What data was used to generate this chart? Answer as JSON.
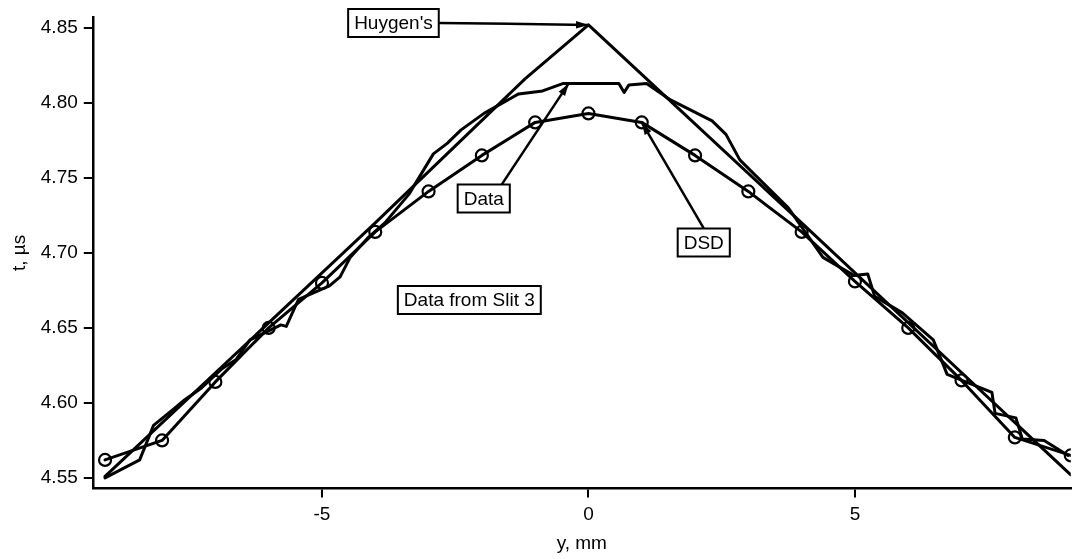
{
  "chart_data": {
    "type": "line",
    "xlabel": "y, mm",
    "ylabel": "t, µs",
    "xlim": [
      -9.3,
      9.05
    ],
    "ylim": [
      4.543,
      4.857
    ],
    "xticks": [
      -5,
      0,
      5
    ],
    "yticks": [
      4.55,
      {
        "value": 4.6,
        "label": "4.60"
      },
      4.65,
      {
        "value": 4.7,
        "label": "4.70"
      },
      4.75,
      {
        "value": 4.8,
        "label": "4.80"
      },
      4.85
    ],
    "grid": false,
    "legend": false,
    "line_style": "solid",
    "series": [
      {
        "color": "#000000",
        "marker": "none",
        "x": [
          -9.07,
          -4,
          -1.19,
          0,
          1.09,
          4,
          9.05
        ],
        "values": [
          4.551,
          4.72,
          4.816,
          4.852,
          4.816,
          4.72,
          4.552
        ]
      },
      {
        "color": "#000000",
        "marker": "none",
        "x": [
          -9.07,
          -8.42,
          -8.16,
          -7.78,
          -7.58,
          -7.26,
          -6.87,
          -6.61,
          -6.35,
          -5.77,
          -5.67,
          -5.44,
          -4.86,
          -4.66,
          -4.47,
          -4.14,
          -3.82,
          -3.37,
          -2.91,
          -2.65,
          -2.39,
          -1.96,
          -1.31,
          -0.86,
          -0.47,
          0.57,
          0.67,
          0.76,
          1.09,
          1.54,
          1.93,
          2.32,
          2.58,
          2.84,
          3.75,
          4.4,
          4.98,
          5.24,
          5.37,
          5.89,
          6.47,
          6.73,
          7.57,
          7.63,
          8.02,
          8.14,
          8.55,
          9.0
        ],
        "values": [
          4.55,
          4.562,
          4.585,
          4.596,
          4.602,
          4.61,
          4.623,
          4.629,
          4.642,
          4.652,
          4.651,
          4.669,
          4.678,
          4.684,
          4.697,
          4.71,
          4.72,
          4.739,
          4.766,
          4.773,
          4.782,
          4.793,
          4.806,
          4.808,
          4.813,
          4.813,
          4.807,
          4.812,
          4.813,
          4.802,
          4.795,
          4.788,
          4.779,
          4.762,
          4.73,
          4.697,
          4.685,
          4.686,
          4.671,
          4.66,
          4.642,
          4.619,
          4.607,
          4.593,
          4.59,
          4.576,
          4.575,
          4.565
        ]
      },
      {
        "color": "#000000",
        "marker": "circle",
        "x": [
          -9.07,
          -8,
          -7,
          -6,
          -5,
          -4,
          -3,
          -2,
          -1,
          0,
          1,
          2,
          3,
          4,
          5,
          6,
          7,
          8,
          9.05
        ],
        "values": [
          4.562,
          4.575,
          4.614,
          4.65,
          4.68,
          4.714,
          4.741,
          4.765,
          4.787,
          4.793,
          4.787,
          4.765,
          4.741,
          4.714,
          4.681,
          4.65,
          4.615,
          4.577,
          4.565
        ]
      }
    ],
    "annotations": [
      {
        "text": "Huygen's",
        "x": 0,
        "y": 4.852
      },
      {
        "text": "Data",
        "x": -0.37,
        "y": 4.813
      },
      {
        "text": "DSD",
        "x": 1,
        "y": 4.787
      },
      "Data from Slit 3"
    ]
  }
}
